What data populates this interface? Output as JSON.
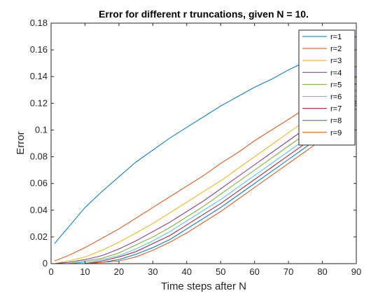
{
  "chart_data": {
    "type": "line",
    "title": "Error for different r truncations, given N = 10.",
    "xlabel": "Time steps after N",
    "ylabel": "Error",
    "xlim": [
      0,
      90
    ],
    "ylim": [
      0,
      0.18
    ],
    "xticks": [
      0,
      10,
      20,
      30,
      40,
      50,
      60,
      70,
      80,
      90
    ],
    "xtick_labels": [
      "0",
      "10",
      "20",
      "30",
      "40",
      "50",
      "60",
      "70",
      "80",
      "90"
    ],
    "yticks": [
      0,
      0.02,
      0.04,
      0.06,
      0.08,
      0.1,
      0.12,
      0.14,
      0.16,
      0.18
    ],
    "ytick_labels": [
      "0",
      "0.02",
      "0.04",
      "0.06",
      "0.08",
      "0.1",
      "0.12",
      "0.14",
      "0.16",
      "0.18"
    ],
    "grid": false,
    "legend_position": "top-right",
    "x": [
      1,
      5,
      10,
      15,
      20,
      25,
      30,
      35,
      40,
      45,
      50,
      55,
      60,
      65,
      70,
      75,
      80,
      85,
      90
    ],
    "series": [
      {
        "name": "r=1",
        "color": "#0072BD",
        "values": [
          0.015,
          0.027,
          0.042,
          0.054,
          0.065,
          0.076,
          0.085,
          0.094,
          0.102,
          0.11,
          0.118,
          0.125,
          0.132,
          0.138,
          0.145,
          0.151,
          0.157,
          0.163,
          0.17
        ]
      },
      {
        "name": "r=2",
        "color": "#D95319",
        "values": [
          0.002,
          0.006,
          0.012,
          0.019,
          0.026,
          0.034,
          0.042,
          0.05,
          0.058,
          0.066,
          0.075,
          0.083,
          0.092,
          0.1,
          0.108,
          0.116,
          0.124,
          0.132,
          0.148
        ]
      },
      {
        "name": "r=3",
        "color": "#EDB120",
        "values": [
          0.0,
          0.002,
          0.005,
          0.01,
          0.016,
          0.023,
          0.03,
          0.038,
          0.046,
          0.054,
          0.062,
          0.071,
          0.08,
          0.089,
          0.098,
          0.107,
          0.116,
          0.125,
          0.14
        ]
      },
      {
        "name": "r=4",
        "color": "#7E2F8E",
        "values": [
          0.0,
          0.001,
          0.003,
          0.006,
          0.011,
          0.017,
          0.024,
          0.031,
          0.039,
          0.047,
          0.056,
          0.065,
          0.074,
          0.083,
          0.092,
          0.101,
          0.11,
          0.12,
          0.135
        ]
      },
      {
        "name": "r=5",
        "color": "#77AC30",
        "values": [
          0.0,
          0.0,
          0.002,
          0.004,
          0.008,
          0.014,
          0.02,
          0.027,
          0.035,
          0.043,
          0.052,
          0.061,
          0.07,
          0.079,
          0.088,
          0.097,
          0.106,
          0.116,
          0.13
        ]
      },
      {
        "name": "r=6",
        "color": "#4DBEEE",
        "values": [
          0.0,
          0.0,
          0.001,
          0.003,
          0.006,
          0.011,
          0.017,
          0.024,
          0.032,
          0.04,
          0.048,
          0.057,
          0.066,
          0.075,
          0.084,
          0.093,
          0.102,
          0.112,
          0.126
        ]
      },
      {
        "name": "r=7",
        "color": "#A2142F",
        "values": [
          0.0,
          0.0,
          0.0,
          0.002,
          0.005,
          0.009,
          0.015,
          0.021,
          0.029,
          0.037,
          0.045,
          0.054,
          0.063,
          0.072,
          0.081,
          0.09,
          0.099,
          0.109,
          0.122
        ]
      },
      {
        "name": "r=8",
        "color": "#0072BD",
        "values": [
          0.0,
          0.0,
          0.0,
          0.001,
          0.003,
          0.007,
          0.012,
          0.018,
          0.026,
          0.034,
          0.042,
          0.051,
          0.06,
          0.069,
          0.078,
          0.087,
          0.096,
          0.106,
          0.119
        ]
      },
      {
        "name": "r=9",
        "color": "#D95319",
        "values": [
          0.0,
          0.0,
          0.0,
          0.001,
          0.002,
          0.005,
          0.01,
          0.016,
          0.023,
          0.031,
          0.039,
          0.048,
          0.057,
          0.066,
          0.075,
          0.084,
          0.093,
          0.103,
          0.116
        ]
      }
    ]
  }
}
